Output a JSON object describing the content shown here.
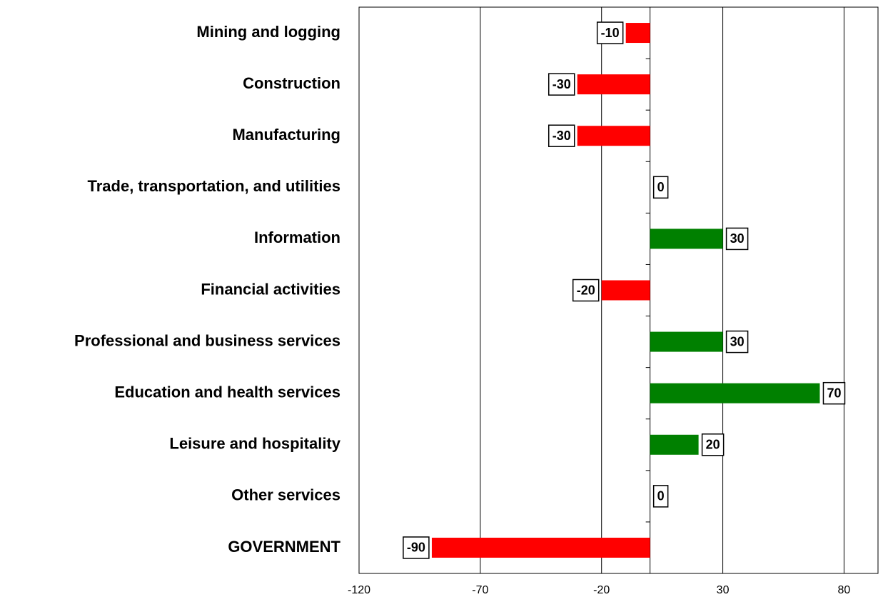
{
  "chart_data": {
    "type": "hbar",
    "categories": [
      "Mining and logging",
      "Construction",
      "Manufacturing",
      "Trade, transportation, and utilities",
      "Information",
      "Financial activities",
      "Professional and business services",
      "Education and health services",
      "Leisure and hospitality",
      "Other services",
      "GOVERNMENT"
    ],
    "values": [
      -10,
      -30,
      -30,
      0,
      30,
      -20,
      30,
      70,
      20,
      0,
      -90
    ],
    "positive_color": "#008000",
    "negative_color": "#ff0000",
    "xlim": [
      -120,
      94
    ],
    "xticks": [
      -120,
      -70,
      -20,
      30,
      80
    ],
    "grid": true
  }
}
